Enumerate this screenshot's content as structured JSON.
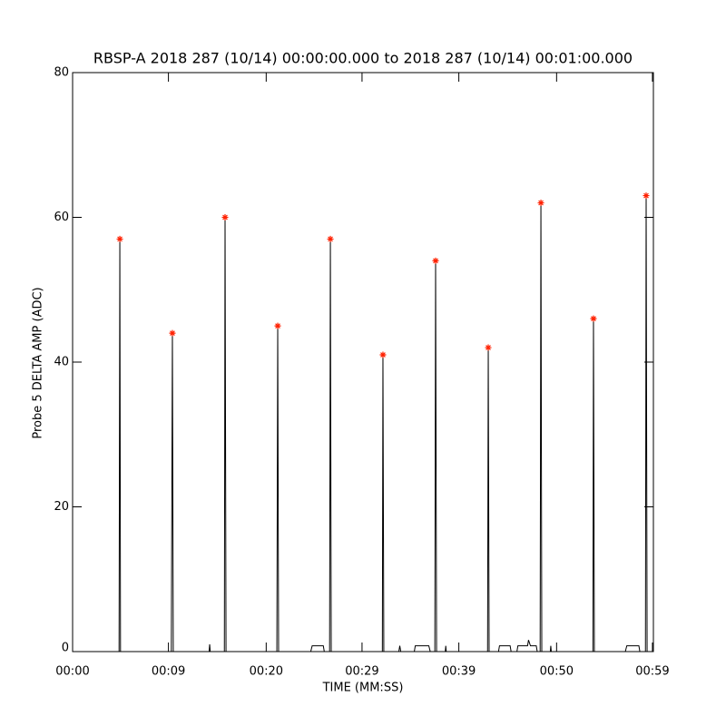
{
  "chart_data": {
    "type": "line",
    "title": "RBSP-A 2018 287 (10/14) 00:00:00.000 to 2018 287 (10/14) 00:01:00.000",
    "xlabel": "TIME (MM:SS)",
    "ylabel": "Probe 5 DELTA AMP (ADC)",
    "xlim": [
      0,
      60
    ],
    "ylim": [
      0,
      80
    ],
    "xticks": [
      {
        "value": 0,
        "label": "00:00"
      },
      {
        "value": 9.9,
        "label": "00:09"
      },
      {
        "value": 20,
        "label": "00:20"
      },
      {
        "value": 29.9,
        "label": "00:29"
      },
      {
        "value": 39.9,
        "label": "00:39"
      },
      {
        "value": 50,
        "label": "00:50"
      },
      {
        "value": 59.9,
        "label": "00:59"
      }
    ],
    "yticks": [
      0,
      20,
      40,
      60,
      80
    ],
    "line": {
      "color": "#000000",
      "x": [
        0,
        4.8,
        4.88,
        4.95,
        10.2,
        10.31,
        10.4,
        14.1,
        14.16,
        14.22,
        15.68,
        15.75,
        15.85,
        21.1,
        21.19,
        21.28,
        24.6,
        24.75,
        25.9,
        26.0,
        26.55,
        26.63,
        26.72,
        32.0,
        32.06,
        32.15,
        33.7,
        33.8,
        33.9,
        35.3,
        35.4,
        36.8,
        36.95,
        37.42,
        37.5,
        37.6,
        38.5,
        38.55,
        38.6,
        42.87,
        42.94,
        43.03,
        44.0,
        44.1,
        45.2,
        45.3,
        45.9,
        46.0,
        47.0,
        47.1,
        47.3,
        47.9,
        48.0,
        48.3,
        48.38,
        48.47,
        49.35,
        49.4,
        49.45,
        53.75,
        53.81,
        53.9,
        57.1,
        57.25,
        58.5,
        58.6,
        59.18,
        59.25,
        59.35,
        60
      ],
      "values": [
        0,
        0,
        57,
        0,
        0,
        44,
        0,
        0,
        1,
        0,
        0,
        60,
        0,
        0,
        45,
        0,
        0,
        0.8,
        0.8,
        0,
        0,
        57,
        0,
        0,
        41,
        0,
        0,
        0.8,
        0,
        0,
        0.8,
        0.8,
        0,
        0,
        54,
        0,
        0,
        0.8,
        0,
        0,
        42,
        0,
        0,
        0.8,
        0.8,
        0,
        0,
        0.8,
        0.8,
        1.6,
        0.8,
        0.8,
        0,
        0,
        62,
        0,
        0,
        0.8,
        0,
        0,
        46,
        0,
        0,
        0.8,
        0.8,
        0,
        0,
        63,
        0,
        0
      ]
    },
    "peaks": {
      "color": "#ff2000",
      "x": [
        4.88,
        10.31,
        15.75,
        21.19,
        26.63,
        32.06,
        37.5,
        42.94,
        48.38,
        53.81,
        59.25
      ],
      "values": [
        57,
        44,
        60,
        45,
        57,
        41,
        54,
        42,
        62,
        46,
        63
      ]
    }
  }
}
